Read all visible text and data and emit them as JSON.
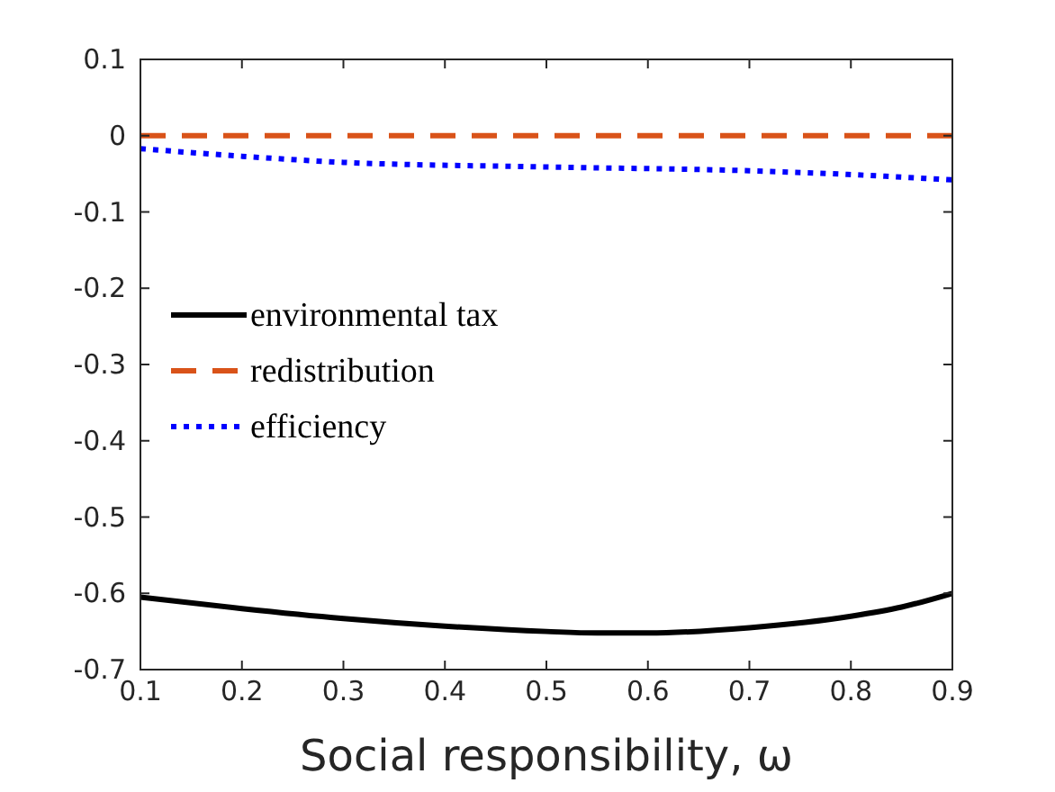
{
  "chart_data": {
    "type": "line",
    "xlabel": "Social responsibility, ω",
    "xlim": [
      0.1,
      0.9
    ],
    "xticks": [
      0.1,
      0.2,
      0.3,
      0.4,
      0.5,
      0.6,
      0.7,
      0.8,
      0.9
    ],
    "ylim": [
      -0.7,
      0.1
    ],
    "yticks": [
      -0.7,
      -0.6,
      -0.5,
      -0.4,
      -0.3,
      -0.2,
      -0.1,
      0,
      0.1
    ],
    "grid": false,
    "legend": "left",
    "series": [
      {
        "name": "environmental tax",
        "color": "#000000",
        "line_style": "solid",
        "x": [
          0.1,
          0.2,
          0.3,
          0.4,
          0.5,
          0.55,
          0.6,
          0.7,
          0.8,
          0.85,
          0.9
        ],
        "values": [
          -0.605,
          -0.62,
          -0.633,
          -0.643,
          -0.65,
          -0.652,
          -0.652,
          -0.645,
          -0.63,
          -0.618,
          -0.6
        ]
      },
      {
        "name": "redistribution",
        "color": "#d95319",
        "line_style": "dashed",
        "x": [
          0.1,
          0.9
        ],
        "values": [
          0,
          0
        ]
      },
      {
        "name": "efficiency",
        "color": "#0000ff",
        "line_style": "dotted",
        "x": [
          0.1,
          0.2,
          0.3,
          0.5,
          0.7,
          0.8,
          0.9
        ],
        "values": [
          -0.017,
          -0.027,
          -0.035,
          -0.041,
          -0.046,
          -0.051,
          -0.058
        ]
      }
    ]
  }
}
